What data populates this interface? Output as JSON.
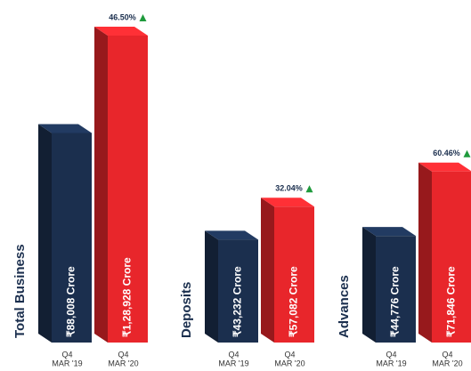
{
  "chart_data": [
    {
      "type": "bar",
      "title": "Total Business",
      "categories": [
        [
          "Q4",
          "MAR '19"
        ],
        [
          "Q4",
          "MAR '20"
        ]
      ],
      "values": [
        88008,
        128928
      ],
      "value_labels": [
        "₹88,008 Crore",
        "₹1,28,928 Crore"
      ],
      "colors": [
        "#1b2f4e",
        "#e8262b"
      ],
      "annotation": "46.50%"
    },
    {
      "type": "bar",
      "title": "Deposits",
      "categories": [
        [
          "Q4",
          "MAR '19"
        ],
        [
          "Q4",
          "MAR '20"
        ]
      ],
      "values": [
        43232,
        57082
      ],
      "value_labels": [
        "₹43,232 Crore",
        "₹57,082 Crore"
      ],
      "colors": [
        "#1b2f4e",
        "#e8262b"
      ],
      "annotation": "32.04%"
    },
    {
      "type": "bar",
      "title": "Advances",
      "categories": [
        [
          "Q4",
          "MAR '19"
        ],
        [
          "Q4",
          "MAR '20"
        ]
      ],
      "values": [
        44776,
        71846
      ],
      "value_labels": [
        "₹44,776 Crore",
        "₹71,846 Crore"
      ],
      "colors": [
        "#1b2f4e",
        "#e8262b"
      ],
      "annotation": "60.46%"
    }
  ]
}
